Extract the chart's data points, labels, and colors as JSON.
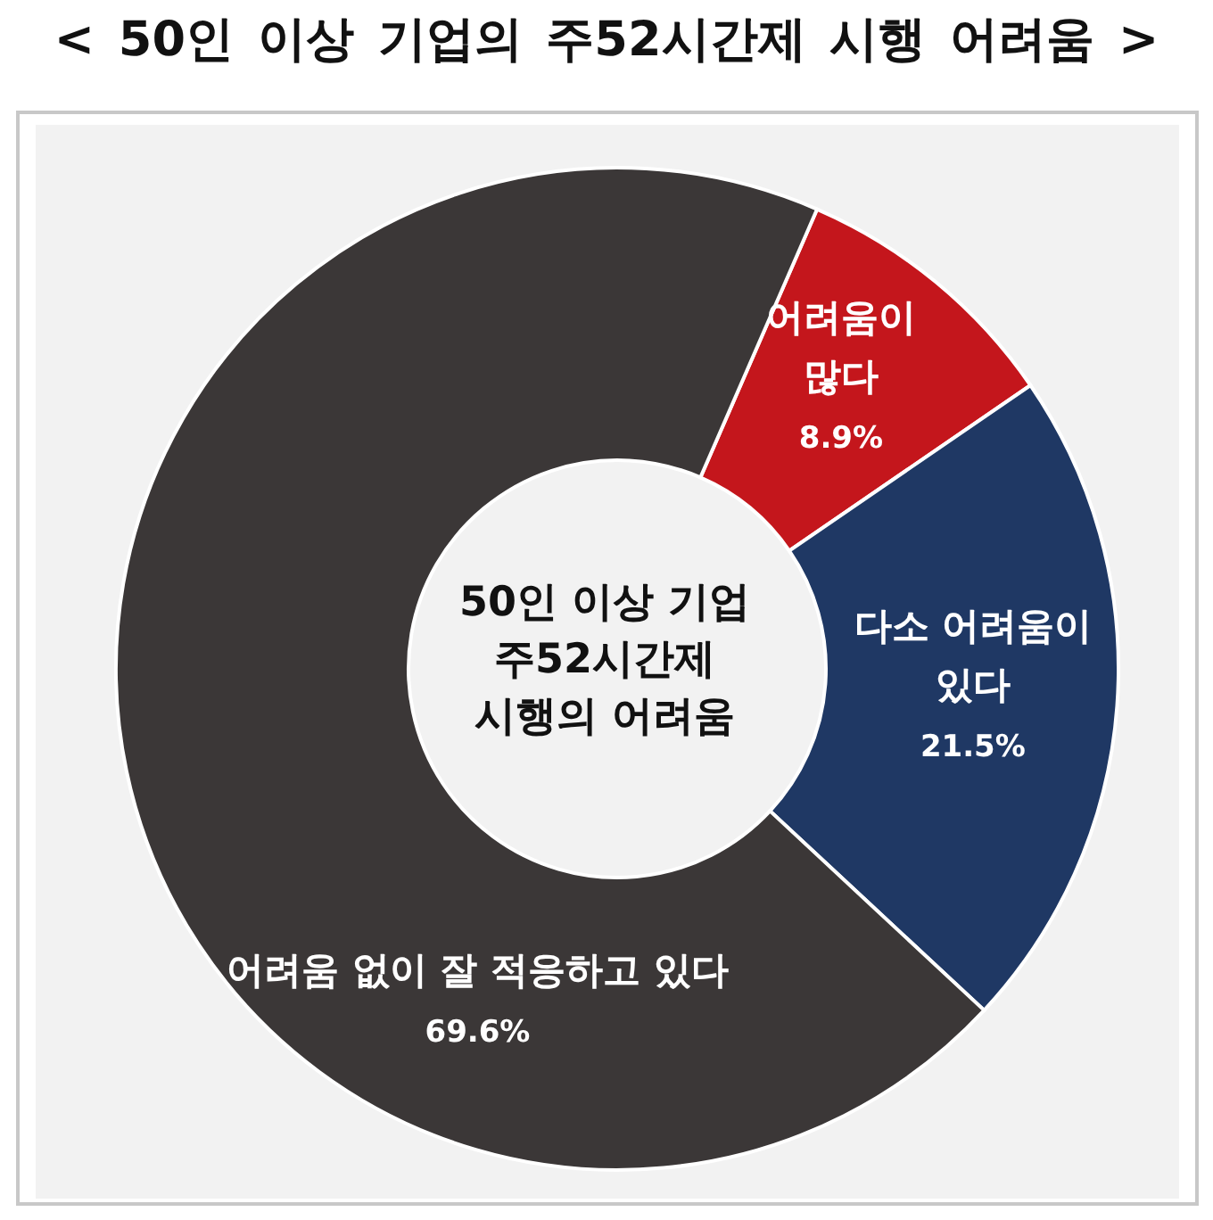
{
  "chart_data": {
    "type": "donut",
    "title": "< 50인 이상 기업의 주52시간제 시행 어려움 >",
    "categories": [
      "어려움이 많다",
      "다소 어려움이 있다",
      "어려움 없이 잘 적응하고 있다"
    ],
    "values": [
      8.9,
      21.5,
      69.6
    ],
    "colors": [
      "#c4161c",
      "#1f3864",
      "#3b3737"
    ],
    "value_labels": [
      "8.9%",
      "21.5%",
      "69.6%"
    ],
    "annotations": [
      "50인 이상 기업 주52시간제 시행의 어려움"
    ]
  }
}
